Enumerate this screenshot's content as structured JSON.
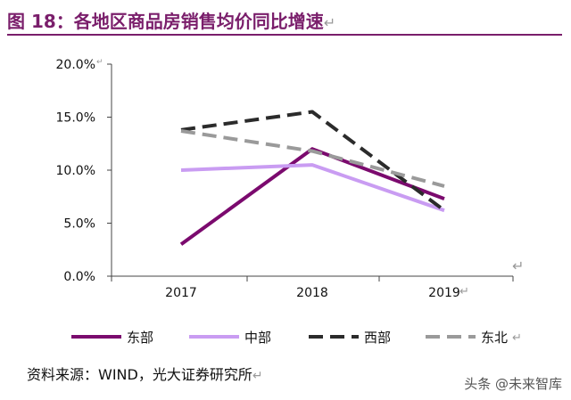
{
  "figure": {
    "title": "图 18：各地区商品房销售均价同比增速",
    "source": "资料来源：WIND，光大证券研究所",
    "watermark": "头条 @未来智库"
  },
  "chart_data": {
    "type": "line",
    "x": [
      "2017",
      "2018",
      "2019"
    ],
    "y_ticks": [
      "20.0%",
      "15.0%",
      "10.0%",
      "5.0%",
      "0.0%"
    ],
    "ylim": [
      0,
      20
    ],
    "grid": false,
    "legend_position": "bottom",
    "series": [
      {
        "name": "东部",
        "values": [
          3.0,
          12.0,
          7.3
        ],
        "color": "#7b0a6e",
        "dash": "solid"
      },
      {
        "name": "中部",
        "values": [
          10.0,
          10.5,
          6.2
        ],
        "color": "#c99cf2",
        "dash": "solid"
      },
      {
        "name": "西部",
        "values": [
          13.8,
          15.5,
          6.2
        ],
        "color": "#2b2b2b",
        "dash": "dashed"
      },
      {
        "name": "东北",
        "values": [
          13.7,
          11.8,
          8.5
        ],
        "color": "#9a9a9a",
        "dash": "dashed"
      }
    ]
  }
}
